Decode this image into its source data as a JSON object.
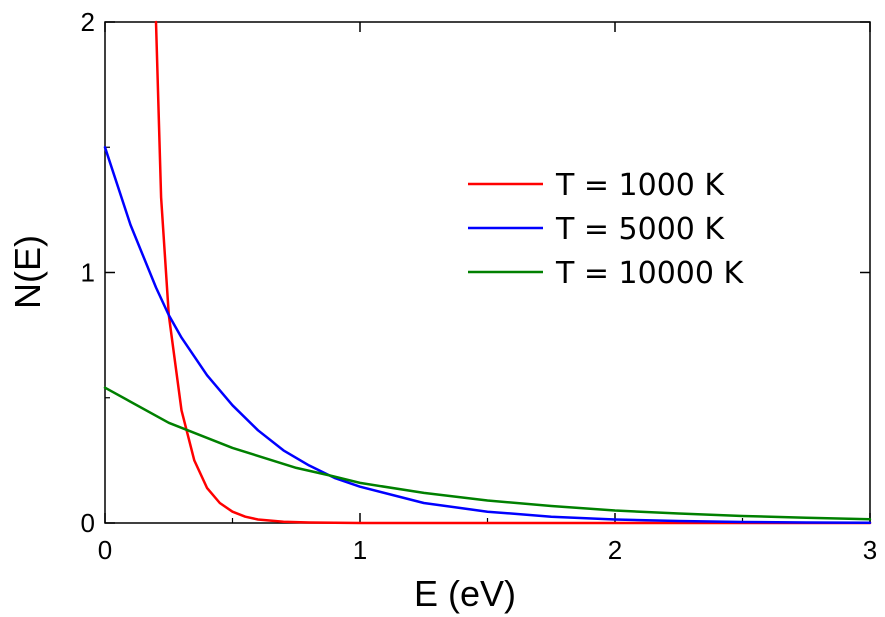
{
  "chart_data": {
    "type": "line",
    "title": "",
    "xlabel": "E (eV)",
    "ylabel": "N(E)",
    "xlim": [
      0,
      3
    ],
    "ylim": [
      0,
      2
    ],
    "x_ticks": [
      0,
      1,
      2,
      3
    ],
    "y_ticks": [
      0,
      1,
      2
    ],
    "grid": false,
    "legend_position": "right",
    "series": [
      {
        "name": "T = 1000 K",
        "color": "#ff0000",
        "x": [
          0.2,
          0.22,
          0.25,
          0.3,
          0.35,
          0.4,
          0.45,
          0.5,
          0.55,
          0.6,
          0.7,
          0.8,
          1.0,
          1.5,
          2.0,
          2.5,
          3.0
        ],
        "y": [
          2.0,
          1.3,
          0.83,
          0.45,
          0.25,
          0.14,
          0.08,
          0.045,
          0.025,
          0.014,
          0.005,
          0.002,
          0.0,
          0.0,
          0.0,
          0.0,
          0.0
        ]
      },
      {
        "name": "T = 5000 K",
        "color": "#0000ff",
        "x": [
          0,
          0.1,
          0.2,
          0.25,
          0.3,
          0.4,
          0.5,
          0.6,
          0.7,
          0.8,
          0.9,
          1.0,
          1.25,
          1.5,
          1.75,
          2.0,
          2.25,
          2.5,
          2.75,
          3.0
        ],
        "y": [
          1.5,
          1.19,
          0.94,
          0.83,
          0.74,
          0.59,
          0.47,
          0.37,
          0.29,
          0.23,
          0.18,
          0.145,
          0.08,
          0.045,
          0.025,
          0.014,
          0.008,
          0.004,
          0.002,
          0.001
        ]
      },
      {
        "name": "T = 10000 K",
        "color": "#008000",
        "x": [
          0,
          0.25,
          0.5,
          0.75,
          0.88,
          1.0,
          1.25,
          1.5,
          1.75,
          2.0,
          2.25,
          2.5,
          2.75,
          3.0
        ],
        "y": [
          0.54,
          0.4,
          0.3,
          0.22,
          0.19,
          0.16,
          0.12,
          0.09,
          0.068,
          0.05,
          0.038,
          0.028,
          0.021,
          0.015
        ]
      }
    ]
  }
}
